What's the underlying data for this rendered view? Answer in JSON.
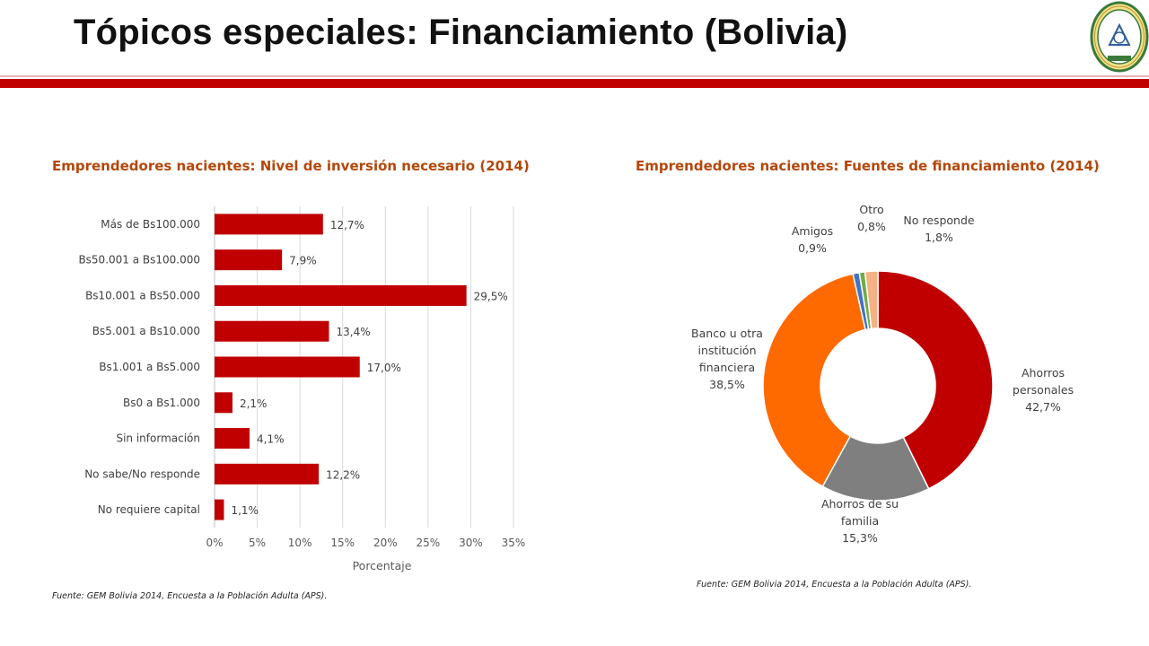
{
  "page": {
    "title": "Tópicos especiales: Financiamiento (Bolivia)",
    "colors": {
      "accent": "#c00000",
      "title_text": "#b4470a"
    },
    "logo_icon": "university-seal-icon"
  },
  "left": {
    "heading": "Emprendedores nacientes: Nivel de inversión necesario (2014)",
    "source": "Fuente: GEM Bolivia 2014, Encuesta a la Población Adulta (APS)."
  },
  "right": {
    "heading": "Emprendedores nacientes: Fuentes de financiamiento (2014)",
    "source": "Fuente: GEM Bolivia 2014, Encuesta a la Población Adulta (APS)."
  },
  "chart_data": [
    {
      "type": "bar",
      "orientation": "horizontal",
      "categories": [
        "Más de Bs100.000",
        "Bs50.001 a Bs100.000",
        "Bs10.001 a Bs50.000",
        "Bs5.001 a Bs10.000",
        "Bs1.001 a Bs5.000",
        "Bs0 a Bs1.000",
        "Sin información",
        "No sabe/No responde",
        "No requiere capital"
      ],
      "values": [
        12.7,
        7.9,
        29.5,
        13.4,
        17.0,
        2.1,
        4.1,
        12.2,
        1.1
      ],
      "value_labels": [
        "12,7%",
        "7,9%",
        "29,5%",
        "13,4%",
        "17,0%",
        "2,1%",
        "4,1%",
        "12,2%",
        "1,1%"
      ],
      "xlabel": "Porcentaje",
      "xlim": [
        0,
        35
      ],
      "xticks": [
        0,
        5,
        10,
        15,
        20,
        25,
        30,
        35
      ],
      "xtick_labels": [
        "0%",
        "5%",
        "10%",
        "15%",
        "20%",
        "25%",
        "30%",
        "35%"
      ],
      "grid": true,
      "color": "#c00000"
    },
    {
      "type": "pie",
      "style": "donut",
      "slices": [
        {
          "name": "Ahorros personales",
          "value": 42.7,
          "label_lines": [
            "Ahorros",
            "personales",
            "42,7%"
          ],
          "color": "#c00000"
        },
        {
          "name": "Ahorros de su familia",
          "value": 15.3,
          "label_lines": [
            "Ahorros de su",
            "familia",
            "15,3%"
          ],
          "color": "#7f7f7f"
        },
        {
          "name": "Banco u otra institución financiera",
          "value": 38.5,
          "label_lines": [
            "Banco u otra",
            "institución",
            "financiera",
            "38,5%"
          ],
          "color": "#ff6a00"
        },
        {
          "name": "Amigos",
          "value": 0.9,
          "label_lines": [
            "Amigos",
            "0,9%"
          ],
          "color": "#4472c4"
        },
        {
          "name": "Otro",
          "value": 0.8,
          "label_lines": [
            "Otro",
            "0,8%"
          ],
          "color": "#70ad47"
        },
        {
          "name": "No responde",
          "value": 1.8,
          "label_lines": [
            "No responde",
            "1,8%"
          ],
          "color": "#f4b183"
        }
      ]
    }
  ]
}
